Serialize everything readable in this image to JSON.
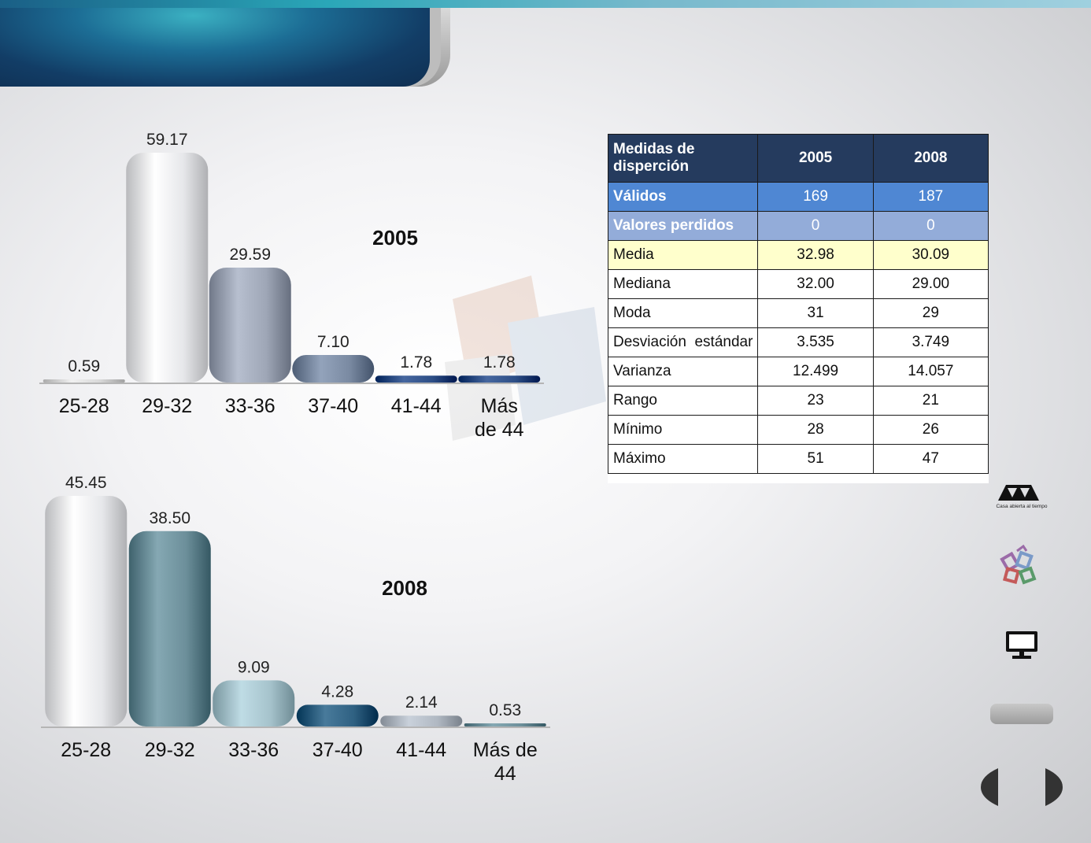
{
  "header": {
    "title": ""
  },
  "chart_data": [
    {
      "type": "bar",
      "title": "2005",
      "categories": [
        "25-28",
        "29-32",
        "33-36",
        "37-40",
        "41-44",
        "Más de 44"
      ],
      "category_lines": [
        [
          "25-28"
        ],
        [
          "29-32"
        ],
        [
          "33-36"
        ],
        [
          "37-40"
        ],
        [
          "41-44"
        ],
        [
          "Más",
          "de 44"
        ]
      ],
      "values": [
        0.59,
        59.17,
        29.59,
        7.1,
        1.78,
        1.78
      ],
      "value_labels": [
        "0.59",
        "59.17",
        "29.59",
        "7.10",
        "1.78",
        "1.78"
      ],
      "colors": [
        "#d8d8d8",
        "#e6e7ea",
        "#9ea6b6",
        "#7a8aa2",
        "#2d4e86",
        "#2d4e86"
      ],
      "ylim": [
        0,
        59.17
      ],
      "grid": false,
      "xlabel": "",
      "ylabel": ""
    },
    {
      "type": "bar",
      "title": "2008",
      "categories": [
        "25-28",
        "29-32",
        "33-36",
        "37-40",
        "41-44",
        "Más de 44"
      ],
      "category_lines": [
        [
          "25-28"
        ],
        [
          "29-32"
        ],
        [
          "33-36"
        ],
        [
          "37-40"
        ],
        [
          "41-44"
        ],
        [
          "Más de",
          "44"
        ]
      ],
      "values": [
        45.45,
        38.5,
        9.09,
        4.28,
        2.14,
        0.53
      ],
      "value_labels": [
        "45.45",
        "38.50",
        "9.09",
        "4.28",
        "2.14",
        "0.53"
      ],
      "colors": [
        "#e6e7ea",
        "#6c8f9a",
        "#a6c3cc",
        "#2f6182",
        "#b0b8c2",
        "#6c8f9a"
      ],
      "ylim": [
        0,
        45.45
      ],
      "grid": false,
      "xlabel": "",
      "ylabel": ""
    }
  ],
  "stats_table": {
    "header": {
      "label": "Medidas de disperción",
      "col1": "2005",
      "col2": "2008"
    },
    "rows": [
      {
        "label": "Válidos",
        "v2005": "169",
        "v2008": "187"
      },
      {
        "label": "Valores perdidos",
        "v2005": "0",
        "v2008": "0"
      },
      {
        "label": "Media",
        "v2005": "32.98",
        "v2008": "30.09"
      },
      {
        "label": "Mediana",
        "v2005": "32.00",
        "v2008": "29.00"
      },
      {
        "label": "Moda",
        "v2005": "31",
        "v2008": "29"
      },
      {
        "label": "Desviación  estándar",
        "v2005": "3.535",
        "v2008": "3.749"
      },
      {
        "label": "Varianza",
        "v2005": "12.499",
        "v2008": "14.057"
      },
      {
        "label": "Rango",
        "v2005": "23",
        "v2008": "21"
      },
      {
        "label": "Mínimo",
        "v2005": "28",
        "v2008": "26"
      },
      {
        "label": "Máximo",
        "v2005": "51",
        "v2008": "47"
      }
    ]
  },
  "logo": {
    "mark": "UAM",
    "caption": "Casa abierta al tiempo"
  },
  "icons": [
    "uam-logo-icon",
    "library-books-icon",
    "monitor-icon",
    "home-pill-button",
    "prev-arrow-icon",
    "next-arrow-icon"
  ],
  "accent_colors": {
    "table_header": "#253b5e",
    "valid_row": "#4f87d3",
    "lost_row": "#93acd9",
    "media_row": "#ffffcc"
  }
}
